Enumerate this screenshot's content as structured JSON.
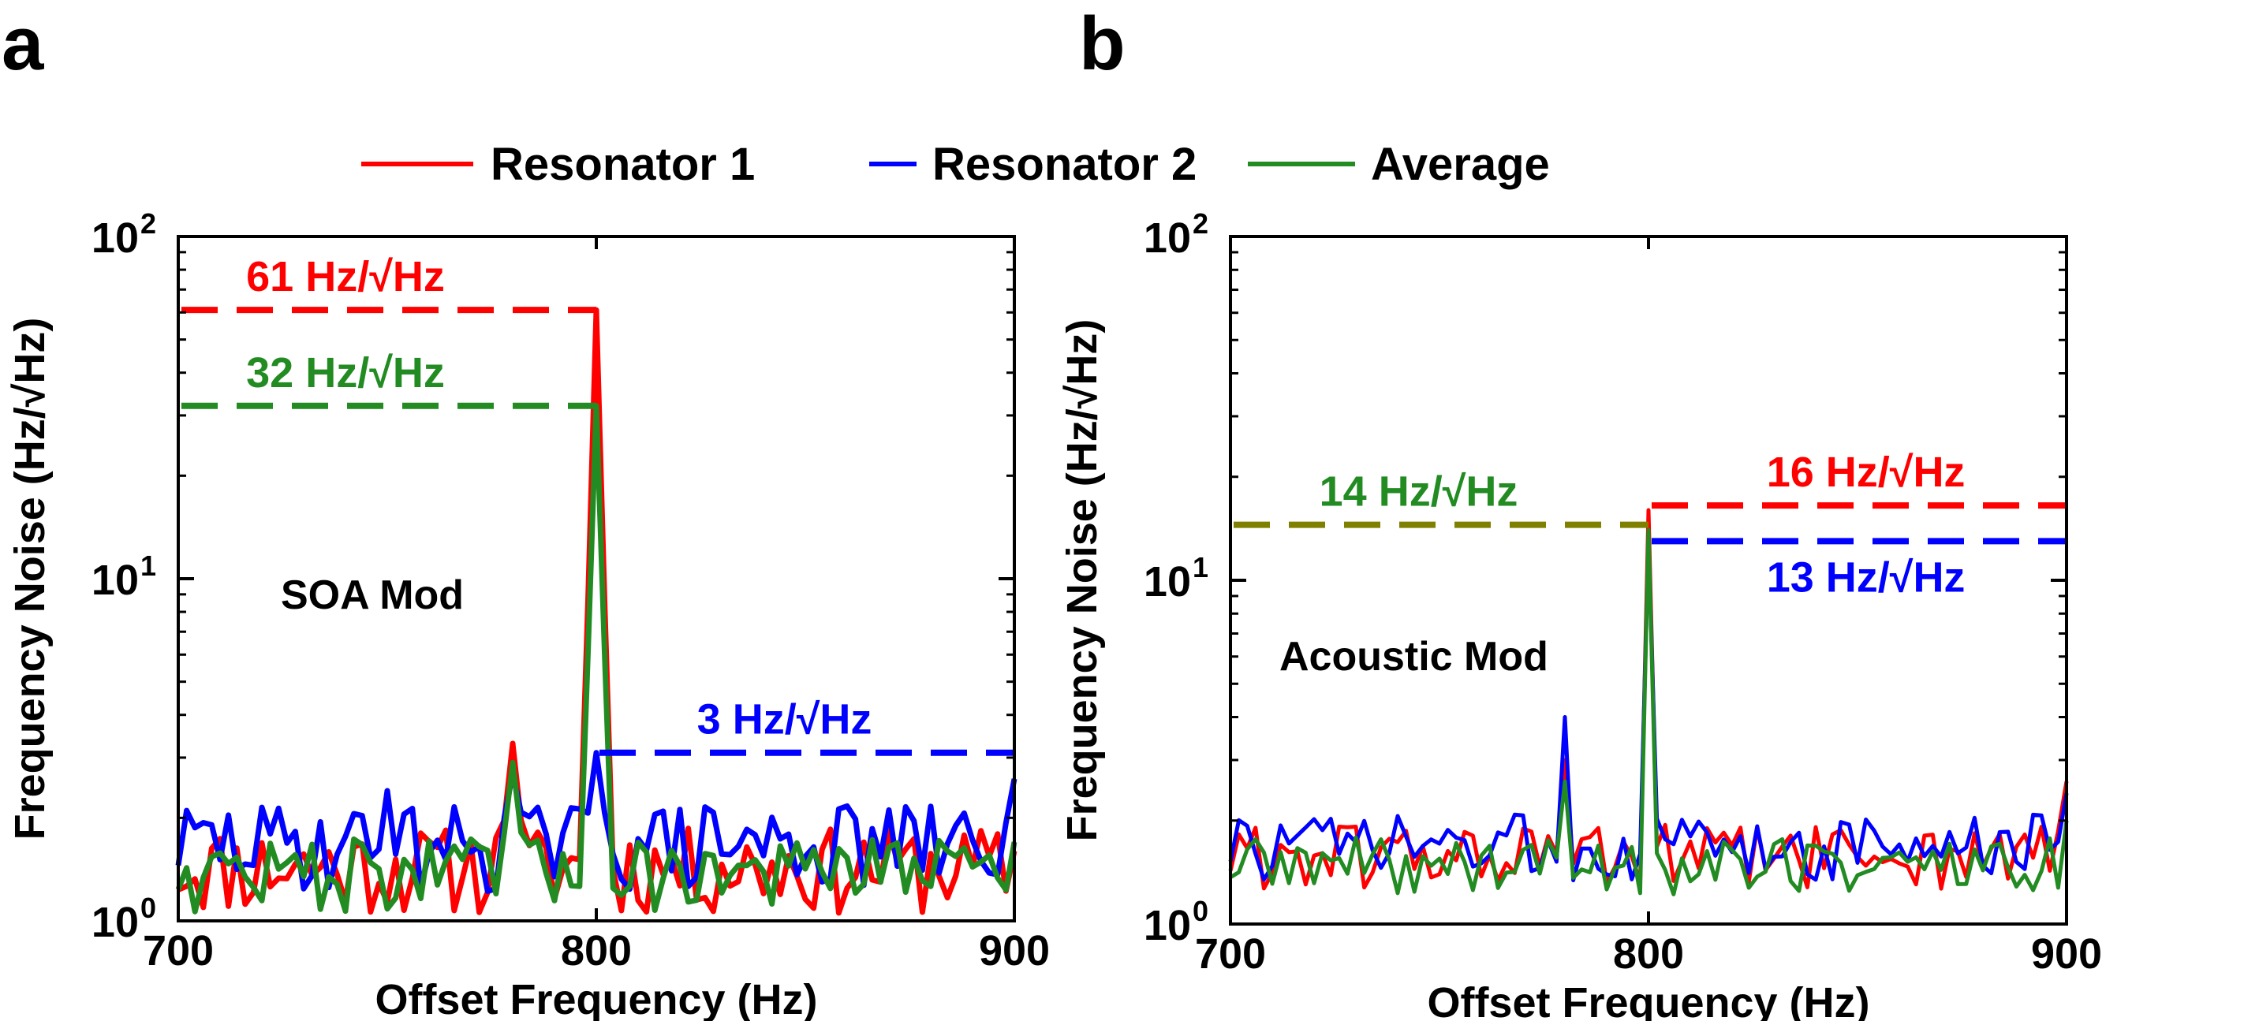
{
  "colors": {
    "resonator_1": "#ff0000",
    "resonator_2": "#0000ff",
    "average": "#228b22",
    "average_level_b": "#808000"
  },
  "legend": {
    "items": [
      {
        "label": "Resonator 1",
        "color": "#ff0000"
      },
      {
        "label": "Resonator 2",
        "color": "#0000ff"
      },
      {
        "label": "Average",
        "color": "#228b22"
      }
    ]
  },
  "chart_data": [
    {
      "panel_letter": "a",
      "type": "line",
      "yscale": "log",
      "xlabel": "Offset Frequency (Hz)",
      "ylabel": "Frequency Noise (Hz/√Hz)",
      "xlim": [
        700,
        900
      ],
      "ylim": [
        1,
        100
      ],
      "x_ticks": [
        "700",
        "800",
        "900"
      ],
      "y_ticks": [
        {
          "base": "10",
          "exp": "0"
        },
        {
          "base": "10",
          "exp": "1"
        },
        {
          "base": "10",
          "exp": "2"
        }
      ],
      "mod_label": "SOA Mod",
      "series": [
        {
          "name": "Resonator 1",
          "color": "#ff0000",
          "baseline": 1.45,
          "spread": 0.18,
          "seed": 11,
          "peaks": [
            {
              "x": 780,
              "y": 3.3,
              "width": 2
            },
            {
              "x": 800,
              "y": 61,
              "width": 2
            }
          ],
          "end_y": 1.6
        },
        {
          "name": "Resonator 2",
          "color": "#0000ff",
          "baseline": 1.7,
          "spread": 0.18,
          "seed": 29,
          "peaks": [
            {
              "x": 750,
              "y": 2.4,
              "width": 1
            },
            {
              "x": 780,
              "y": 2.7,
              "width": 2
            },
            {
              "x": 800,
              "y": 3.1,
              "width": 2
            }
          ],
          "end_y": 2.6
        },
        {
          "name": "Average",
          "color": "#228b22",
          "baseline": 1.4,
          "spread": 0.15,
          "seed": 47,
          "peaks": [
            {
              "x": 780,
              "y": 2.9,
              "width": 2
            },
            {
              "x": 800,
              "y": 32,
              "width": 2
            },
            {
              "x": 887,
              "y": 2.1,
              "width": 1
            }
          ],
          "end_y": 1.7
        }
      ],
      "levels": [
        {
          "label": "61 Hz/√Hz",
          "value": 61,
          "x_from": 700,
          "x_to": 800,
          "color": "#ff0000",
          "label_x": 740,
          "label_pos": "above"
        },
        {
          "label": "32 Hz/√Hz",
          "value": 32,
          "x_from": 700,
          "x_to": 800,
          "color": "#228b22",
          "label_x": 740,
          "label_pos": "above"
        },
        {
          "label": "3 Hz/√Hz",
          "value": 3.1,
          "x_from": 800,
          "x_to": 900,
          "color": "#0000ff",
          "label_x": 845,
          "label_pos": "above"
        }
      ]
    },
    {
      "panel_letter": "b",
      "type": "line",
      "yscale": "log",
      "xlabel": "Offset Frequency (Hz)",
      "ylabel": "Frequency Noise (Hz/√Hz)",
      "xlim": [
        700,
        900
      ],
      "ylim": [
        1,
        100
      ],
      "x_ticks": [
        "700",
        "800",
        "900"
      ],
      "y_ticks": [
        {
          "base": "10",
          "exp": "0"
        },
        {
          "base": "10",
          "exp": "1"
        },
        {
          "base": "10",
          "exp": "2"
        }
      ],
      "mod_label": "Acoustic Mod",
      "series": [
        {
          "name": "Resonator 1",
          "color": "#ff0000",
          "baseline": 1.6,
          "spread": 0.14,
          "seed": 61,
          "peaks": [
            {
              "x": 780,
              "y": 3.0,
              "width": 1
            },
            {
              "x": 800,
              "y": 16,
              "width": 1
            }
          ],
          "end_y": 2.6
        },
        {
          "name": "Resonator 2",
          "color": "#0000ff",
          "baseline": 1.7,
          "spread": 0.14,
          "seed": 73,
          "peaks": [
            {
              "x": 780,
              "y": 4.0,
              "width": 1
            },
            {
              "x": 800,
              "y": 13,
              "width": 1
            }
          ],
          "end_y": 2.4
        },
        {
          "name": "Average",
          "color": "#228b22",
          "baseline": 1.5,
          "spread": 0.12,
          "seed": 89,
          "peaks": [
            {
              "x": 780,
              "y": 2.6,
              "width": 1
            },
            {
              "x": 800,
              "y": 14,
              "width": 1
            }
          ],
          "end_y": 2.0
        }
      ],
      "levels": [
        {
          "label": "14 Hz/√Hz",
          "value": 14.5,
          "x_from": 700,
          "x_to": 800,
          "color": "#808000",
          "text_color": "#228b22",
          "label_x": 745,
          "label_pos": "above"
        },
        {
          "label": "16 Hz/√Hz",
          "value": 16.5,
          "x_from": 800,
          "x_to": 900,
          "color": "#ff0000",
          "label_x": 852,
          "label_pos": "above"
        },
        {
          "label": "13 Hz/√Hz",
          "value": 13,
          "x_from": 800,
          "x_to": 900,
          "color": "#0000ff",
          "label_x": 852,
          "label_pos": "below"
        }
      ]
    }
  ]
}
